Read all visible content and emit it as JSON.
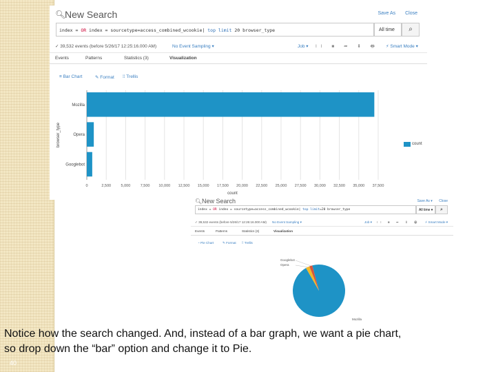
{
  "slide": {
    "page_number": "40"
  },
  "caption": {
    "line1": "Notice how the search changed. And, instead of a bar graph, we want a pie chart,",
    "line2": "so drop down the “bar” option and change it to Pie."
  },
  "shot1": {
    "title": "New Search",
    "save_as": "Save As",
    "close": "Close",
    "search_query": {
      "part1": "index = ",
      "or": "OR",
      "part2": " index = sourcetype=access_combined_wcookie| ",
      "cmd": "top limit",
      "part3": " 20 browser_type"
    },
    "time_picker": "All time",
    "status": {
      "events": "✓ 39,532 events (before 5/26/17 12:25:16.000 AM)",
      "sampling": "No Event Sampling ▾",
      "job": "Job ▾",
      "controls": "II ■ ➦ ⬇ 🖶",
      "mode": "⚡ Smart Mode ▾"
    },
    "tabs": [
      {
        "label": "Events"
      },
      {
        "label": "Patterns"
      },
      {
        "label": "Statistics (3)"
      },
      {
        "label": "Visualization"
      }
    ],
    "viz_toolbar": {
      "bar_chart": "≡ Bar Chart",
      "format": "✎ Format",
      "trellis": "⁞⁞ Trellis"
    },
    "legend": "count"
  },
  "shot2": {
    "title": "New Search",
    "save_as": "Save As ▾",
    "close": "Close",
    "search_query": {
      "part1": "index = ",
      "or": "OR",
      "part2": " index = sourcetype=access_combined_wcookie| ",
      "cmd": "top limit",
      "part3": "=20 browser_type"
    },
    "time_picker": "All time ▾",
    "status": {
      "events": "✓ 39,532 events (before 5/26/17 12:26:16.000 AM)",
      "sampling": "No Event Sampling ▾",
      "job": "Job ▾",
      "controls": "II ■ ➦ ⬇ 🖶",
      "mode": "⚡ Smart Mode ▾"
    },
    "tabs": [
      {
        "label": "Events"
      },
      {
        "label": "Patterns"
      },
      {
        "label": "Statistics (3)"
      },
      {
        "label": "Visualization"
      }
    ],
    "viz_toolbar": {
      "pie_chart": "◔ Pie Chart",
      "format": "✎ Format",
      "trellis": "⁞⁞ Trellis"
    }
  },
  "chart_data": [
    {
      "type": "bar",
      "orientation": "horizontal",
      "categories": [
        "Mozilla",
        "Opera",
        "Googlebot"
      ],
      "series": [
        {
          "name": "count",
          "values": [
            37000,
            900,
            700
          ]
        }
      ],
      "xlabel": "count",
      "ylabel": "browser_type",
      "xlim": [
        0,
        37500
      ],
      "xticks": [
        "0",
        "2,500",
        "5,000",
        "7,500",
        "10,000",
        "12,500",
        "15,000",
        "17,500",
        "20,000",
        "22,500",
        "25,000",
        "27,500",
        "30,000",
        "32,500",
        "35,000",
        "37,500"
      ],
      "legend": "right",
      "colors": [
        "#1e93c6"
      ]
    },
    {
      "type": "pie",
      "categories": [
        "Mozilla",
        "Opera",
        "Googlebot"
      ],
      "values": [
        37000,
        900,
        700
      ],
      "colors": [
        "#1e93c6",
        "#f2b827",
        "#d6563c"
      ],
      "labels_placement": "outside"
    }
  ]
}
